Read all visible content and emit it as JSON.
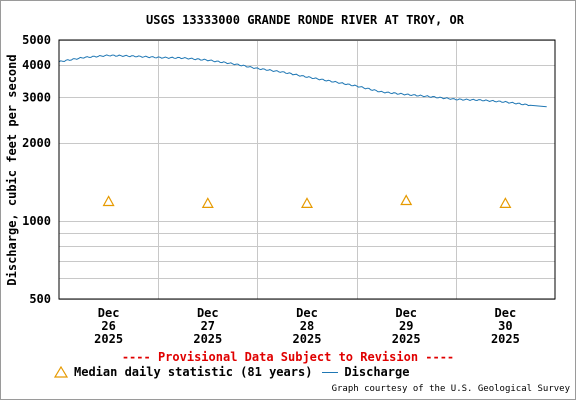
{
  "chart_data": {
    "type": "line",
    "title": "USGS 13333000 GRANDE RONDE RIVER AT TROY, OR",
    "ylabel": "Discharge, cubic feet per second",
    "xlabel": "",
    "y_scale": "log",
    "ylim": [
      500,
      5000
    ],
    "y_tick_labels": [
      "500",
      "1000",
      "2000",
      "3000",
      "4000",
      "5000"
    ],
    "y_tick_values": [
      500,
      1000,
      2000,
      3000,
      4000,
      5000
    ],
    "y_grid_values": [
      500,
      600,
      700,
      800,
      900,
      1000,
      2000,
      3000,
      4000,
      5000
    ],
    "x_start": "2025-12-26T00:00",
    "x_end": "2025-12-31T00:00",
    "x_ticks": [
      {
        "month": "Dec",
        "day": "26",
        "year": "2025",
        "date": "2025-12-26T12:00"
      },
      {
        "month": "Dec",
        "day": "27",
        "year": "2025",
        "date": "2025-12-27T12:00"
      },
      {
        "month": "Dec",
        "day": "28",
        "year": "2025",
        "date": "2025-12-28T12:00"
      },
      {
        "month": "Dec",
        "day": "29",
        "year": "2025",
        "date": "2025-12-29T12:00"
      },
      {
        "month": "Dec",
        "day": "30",
        "year": "2025",
        "date": "2025-12-30T12:00"
      }
    ],
    "grid": true,
    "series": [
      {
        "name": "Discharge",
        "color": "#1f77b4",
        "points": [
          {
            "x": "2025-12-26T00:00",
            "y": 4120
          },
          {
            "x": "2025-12-26T06:00",
            "y": 4280
          },
          {
            "x": "2025-12-26T12:00",
            "y": 4360
          },
          {
            "x": "2025-12-26T18:00",
            "y": 4330
          },
          {
            "x": "2025-12-27T00:00",
            "y": 4280
          },
          {
            "x": "2025-12-27T06:00",
            "y": 4260
          },
          {
            "x": "2025-12-27T12:00",
            "y": 4180
          },
          {
            "x": "2025-12-27T18:00",
            "y": 4050
          },
          {
            "x": "2025-12-28T00:00",
            "y": 3880
          },
          {
            "x": "2025-12-28T06:00",
            "y": 3760
          },
          {
            "x": "2025-12-28T12:00",
            "y": 3600
          },
          {
            "x": "2025-12-28T18:00",
            "y": 3460
          },
          {
            "x": "2025-12-29T00:00",
            "y": 3320
          },
          {
            "x": "2025-12-29T06:00",
            "y": 3150
          },
          {
            "x": "2025-12-29T12:00",
            "y": 3080
          },
          {
            "x": "2025-12-29T18:00",
            "y": 3020
          },
          {
            "x": "2025-12-30T00:00",
            "y": 2950
          },
          {
            "x": "2025-12-30T06:00",
            "y": 2930
          },
          {
            "x": "2025-12-30T12:00",
            "y": 2880
          },
          {
            "x": "2025-12-30T18:00",
            "y": 2800
          }
        ]
      },
      {
        "name": "Median daily statistic (81 years)",
        "color": "#e69a00",
        "marker": "triangle",
        "points": [
          {
            "x": "2025-12-26T12:00",
            "y": 1190
          },
          {
            "x": "2025-12-27T12:00",
            "y": 1170
          },
          {
            "x": "2025-12-28T12:00",
            "y": 1170
          },
          {
            "x": "2025-12-29T12:00",
            "y": 1200
          },
          {
            "x": "2025-12-30T12:00",
            "y": 1170
          }
        ]
      }
    ]
  },
  "provisional_notice": "---- Provisional Data Subject to Revision ----",
  "legend": {
    "median_label": "Median daily statistic (81 years)",
    "discharge_label": "Discharge"
  },
  "credit": "Graph courtesy of the U.S. Geological Survey"
}
